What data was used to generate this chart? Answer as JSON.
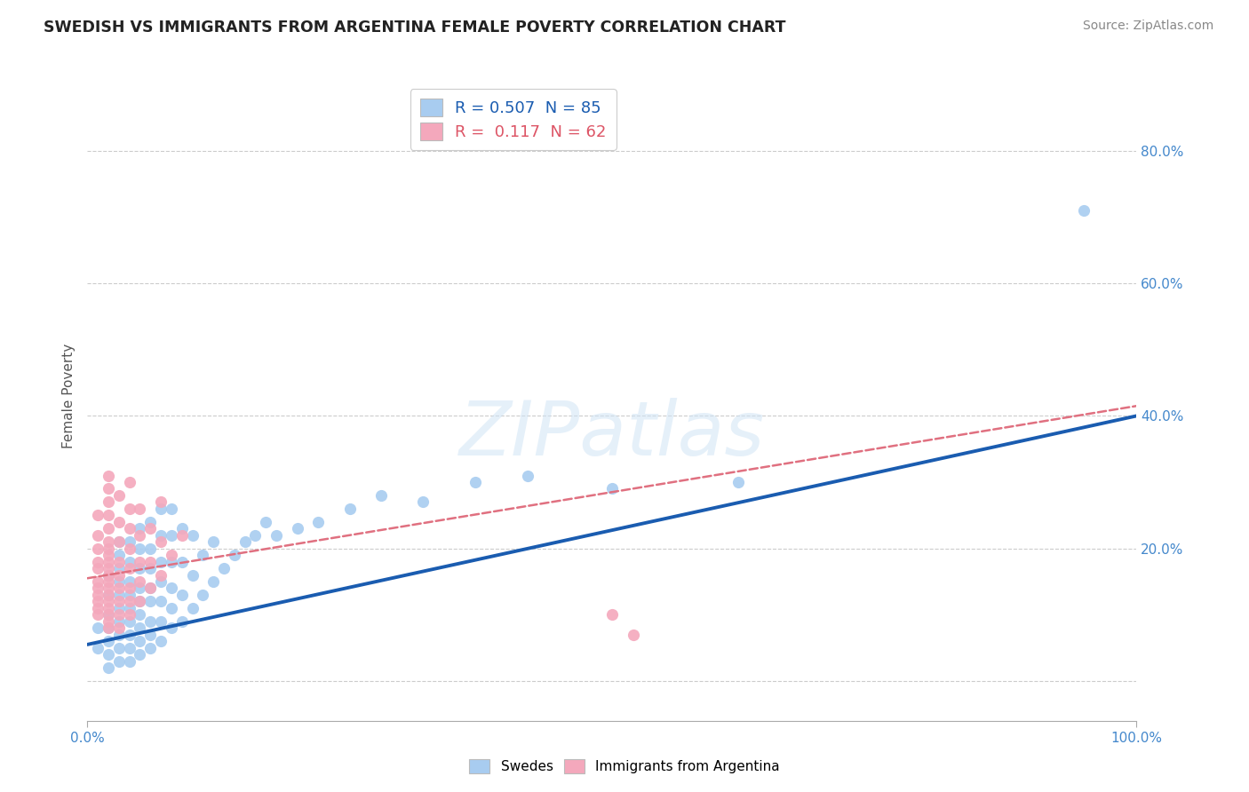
{
  "title": "SWEDISH VS IMMIGRANTS FROM ARGENTINA FEMALE POVERTY CORRELATION CHART",
  "source": "Source: ZipAtlas.com",
  "ylabel": "Female Poverty",
  "xlim": [
    0.0,
    1.0
  ],
  "ylim": [
    -0.06,
    0.92
  ],
  "yticks": [
    0.0,
    0.2,
    0.4,
    0.6,
    0.8
  ],
  "ytick_labels": [
    "",
    "20.0%",
    "40.0%",
    "60.0%",
    "80.0%"
  ],
  "blue_R": "0.507",
  "blue_N": "85",
  "pink_R": "0.117",
  "pink_N": "62",
  "blue_color": "#A8CCF0",
  "pink_color": "#F4A8BC",
  "blue_line_color": "#1A5CB0",
  "pink_line_color": "#E07080",
  "watermark": "ZIPatlas",
  "background_color": "#FFFFFF",
  "grid_color": "#CCCCCC",
  "legend_label_blue": "Swedes",
  "legend_label_pink": "Immigrants from Argentina",
  "blue_line_x0": 0.0,
  "blue_line_y0": 0.055,
  "blue_line_x1": 1.0,
  "blue_line_y1": 0.4,
  "pink_line_x0": 0.0,
  "pink_line_y0": 0.155,
  "pink_line_x1": 1.0,
  "pink_line_y1": 0.415,
  "swedes_x": [
    0.01,
    0.01,
    0.02,
    0.02,
    0.02,
    0.02,
    0.02,
    0.02,
    0.02,
    0.03,
    0.03,
    0.03,
    0.03,
    0.03,
    0.03,
    0.03,
    0.03,
    0.03,
    0.03,
    0.04,
    0.04,
    0.04,
    0.04,
    0.04,
    0.04,
    0.04,
    0.04,
    0.04,
    0.05,
    0.05,
    0.05,
    0.05,
    0.05,
    0.05,
    0.05,
    0.05,
    0.05,
    0.06,
    0.06,
    0.06,
    0.06,
    0.06,
    0.06,
    0.06,
    0.06,
    0.07,
    0.07,
    0.07,
    0.07,
    0.07,
    0.07,
    0.07,
    0.08,
    0.08,
    0.08,
    0.08,
    0.08,
    0.08,
    0.09,
    0.09,
    0.09,
    0.09,
    0.1,
    0.1,
    0.1,
    0.11,
    0.11,
    0.12,
    0.12,
    0.13,
    0.14,
    0.15,
    0.16,
    0.17,
    0.18,
    0.2,
    0.22,
    0.25,
    0.28,
    0.32,
    0.37,
    0.42,
    0.5,
    0.62,
    0.95
  ],
  "swedes_y": [
    0.05,
    0.08,
    0.02,
    0.04,
    0.06,
    0.08,
    0.1,
    0.13,
    0.16,
    0.03,
    0.05,
    0.07,
    0.09,
    0.11,
    0.13,
    0.15,
    0.17,
    0.19,
    0.21,
    0.03,
    0.05,
    0.07,
    0.09,
    0.11,
    0.13,
    0.15,
    0.18,
    0.21,
    0.04,
    0.06,
    0.08,
    0.1,
    0.12,
    0.14,
    0.17,
    0.2,
    0.23,
    0.05,
    0.07,
    0.09,
    0.12,
    0.14,
    0.17,
    0.2,
    0.24,
    0.06,
    0.09,
    0.12,
    0.15,
    0.18,
    0.22,
    0.26,
    0.08,
    0.11,
    0.14,
    0.18,
    0.22,
    0.26,
    0.09,
    0.13,
    0.18,
    0.23,
    0.11,
    0.16,
    0.22,
    0.13,
    0.19,
    0.15,
    0.21,
    0.17,
    0.19,
    0.21,
    0.22,
    0.24,
    0.22,
    0.23,
    0.24,
    0.26,
    0.28,
    0.27,
    0.3,
    0.31,
    0.29,
    0.3,
    0.71
  ],
  "argentina_x": [
    0.01,
    0.01,
    0.01,
    0.01,
    0.01,
    0.01,
    0.01,
    0.01,
    0.01,
    0.01,
    0.01,
    0.02,
    0.02,
    0.02,
    0.02,
    0.02,
    0.02,
    0.02,
    0.02,
    0.02,
    0.02,
    0.02,
    0.02,
    0.02,
    0.02,
    0.02,
    0.02,
    0.02,
    0.02,
    0.02,
    0.03,
    0.03,
    0.03,
    0.03,
    0.03,
    0.03,
    0.03,
    0.03,
    0.03,
    0.04,
    0.04,
    0.04,
    0.04,
    0.04,
    0.04,
    0.04,
    0.04,
    0.05,
    0.05,
    0.05,
    0.05,
    0.05,
    0.06,
    0.06,
    0.06,
    0.07,
    0.07,
    0.07,
    0.08,
    0.09,
    0.5,
    0.52
  ],
  "argentina_y": [
    0.1,
    0.11,
    0.12,
    0.13,
    0.14,
    0.15,
    0.17,
    0.18,
    0.2,
    0.22,
    0.25,
    0.08,
    0.09,
    0.1,
    0.11,
    0.12,
    0.13,
    0.14,
    0.15,
    0.16,
    0.17,
    0.18,
    0.19,
    0.2,
    0.21,
    0.23,
    0.25,
    0.27,
    0.29,
    0.31,
    0.08,
    0.1,
    0.12,
    0.14,
    0.16,
    0.18,
    0.21,
    0.24,
    0.28,
    0.1,
    0.12,
    0.14,
    0.17,
    0.2,
    0.23,
    0.26,
    0.3,
    0.12,
    0.15,
    0.18,
    0.22,
    0.26,
    0.14,
    0.18,
    0.23,
    0.16,
    0.21,
    0.27,
    0.19,
    0.22,
    0.1,
    0.07
  ]
}
